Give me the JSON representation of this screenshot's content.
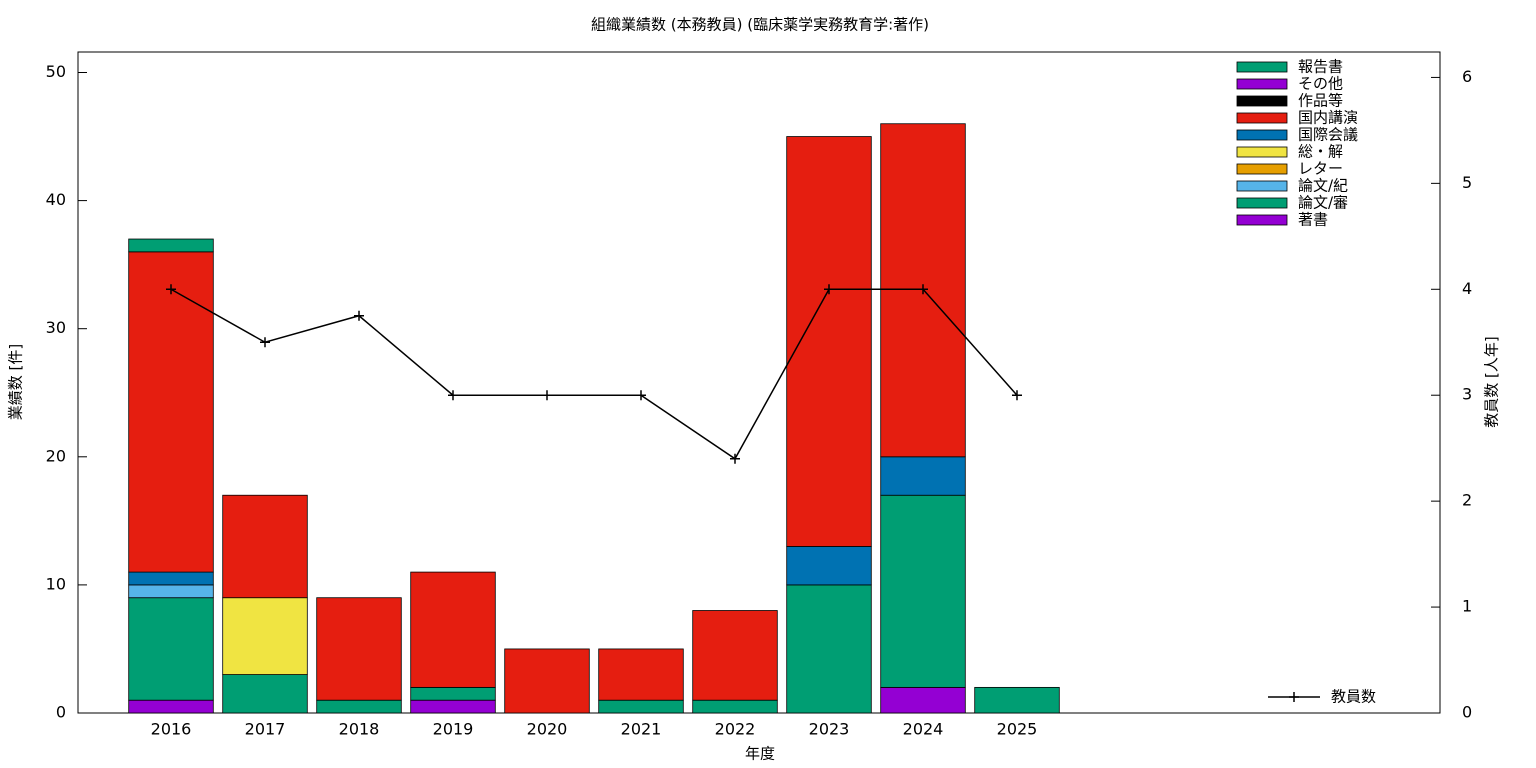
{
  "chart_data": {
    "type": "bar",
    "title": "組織業績数 (本務教員) (臨床薬学実務教育学:著作)",
    "xlabel": "年度",
    "ylabel": "業績数 [件]",
    "y2label": "教員数 [人年]",
    "stacked": true,
    "categories": [
      "2016",
      "2017",
      "2018",
      "2019",
      "2020",
      "2021",
      "2022",
      "2023",
      "2024",
      "2025"
    ],
    "series": [
      {
        "name": "著書",
        "color": "#9400d3",
        "values": [
          1,
          0,
          0,
          1,
          0,
          0,
          0,
          0,
          2,
          0
        ]
      },
      {
        "name": "論文/審",
        "color": "#009e73",
        "values": [
          8,
          3,
          1,
          1,
          0,
          1,
          1,
          10,
          15,
          2
        ]
      },
      {
        "name": "論文/紀",
        "color": "#56b4e9",
        "values": [
          1,
          0,
          0,
          0,
          0,
          0,
          0,
          0,
          0,
          0
        ]
      },
      {
        "name": "レター",
        "color": "#e69f00",
        "values": [
          0,
          0,
          0,
          0,
          0,
          0,
          0,
          0,
          0,
          0
        ]
      },
      {
        "name": "総・解",
        "color": "#f0e442",
        "values": [
          0,
          6,
          0,
          0,
          0,
          0,
          0,
          0,
          0,
          0
        ]
      },
      {
        "name": "国際会議",
        "color": "#0072b2",
        "values": [
          1,
          0,
          0,
          0,
          0,
          0,
          0,
          3,
          3,
          0
        ]
      },
      {
        "name": "国内講演",
        "color": "#e51e10",
        "values": [
          25,
          8,
          8,
          9,
          5,
          4,
          7,
          32,
          26,
          0
        ]
      },
      {
        "name": "作品等",
        "color": "#000000",
        "values": [
          0,
          0,
          0,
          0,
          0,
          0,
          0,
          0,
          0,
          0
        ]
      },
      {
        "name": "その他",
        "color": "#9400d3",
        "values": [
          0,
          0,
          0,
          0,
          0,
          0,
          0,
          0,
          0,
          0
        ]
      },
      {
        "name": "報告書",
        "color": "#009e73",
        "values": [
          1,
          0,
          0,
          0,
          0,
          0,
          0,
          0,
          0,
          0
        ]
      },
      {
        "name": "教員数",
        "color": "#000000",
        "type": "line",
        "axis": "y2",
        "values": [
          4,
          3.5,
          3.75,
          3,
          3,
          3,
          2.4,
          4,
          4,
          3
        ]
      }
    ],
    "ylim": [
      0,
      51.6
    ],
    "yticks": [
      0,
      10,
      20,
      30,
      40,
      50
    ],
    "y2lim": [
      0,
      6.24
    ],
    "y2ticks": [
      0,
      1,
      2,
      3,
      4,
      5,
      6
    ]
  }
}
